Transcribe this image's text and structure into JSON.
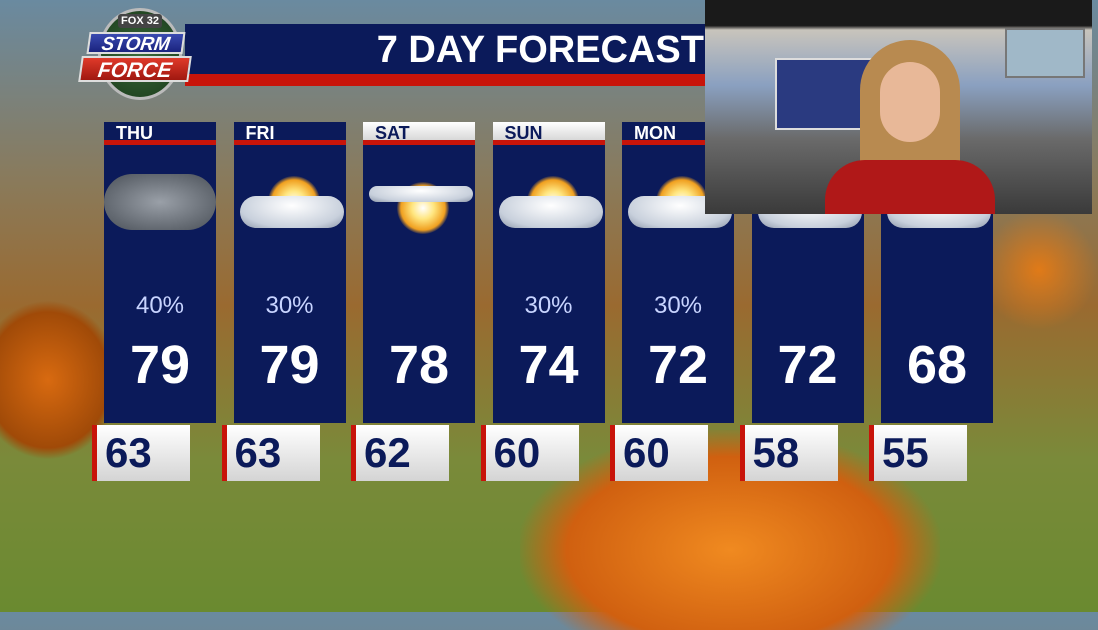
{
  "logo": {
    "network": "FOX 32",
    "line1": "STORM",
    "line2": "FORCE"
  },
  "title": "7 DAY FORECAST",
  "days": [
    {
      "label": "THU",
      "icon": "cloudy-icon",
      "precip": "40%",
      "high": "79",
      "low": "63",
      "header_style": "dark"
    },
    {
      "label": "FRI",
      "icon": "partly-cloudy-icon",
      "precip": "30%",
      "high": "79",
      "low": "63",
      "header_style": "dark"
    },
    {
      "label": "SAT",
      "icon": "mostly-sunny-icon",
      "precip": "",
      "high": "78",
      "low": "62",
      "header_style": "light"
    },
    {
      "label": "SUN",
      "icon": "partly-cloudy-icon",
      "precip": "30%",
      "high": "74",
      "low": "60",
      "header_style": "light"
    },
    {
      "label": "MON",
      "icon": "partly-cloudy-icon",
      "precip": "30%",
      "high": "72",
      "low": "60",
      "header_style": "dark"
    },
    {
      "label": "",
      "icon": "partly-cloudy-icon",
      "precip": "",
      "high": "72",
      "low": "58",
      "header_style": "dark"
    },
    {
      "label": "",
      "icon": "partly-cloudy-icon",
      "precip": "",
      "high": "68",
      "low": "55",
      "header_style": "dark"
    }
  ],
  "colors": {
    "navy": "#0b1a5a",
    "red": "#c8140a"
  }
}
